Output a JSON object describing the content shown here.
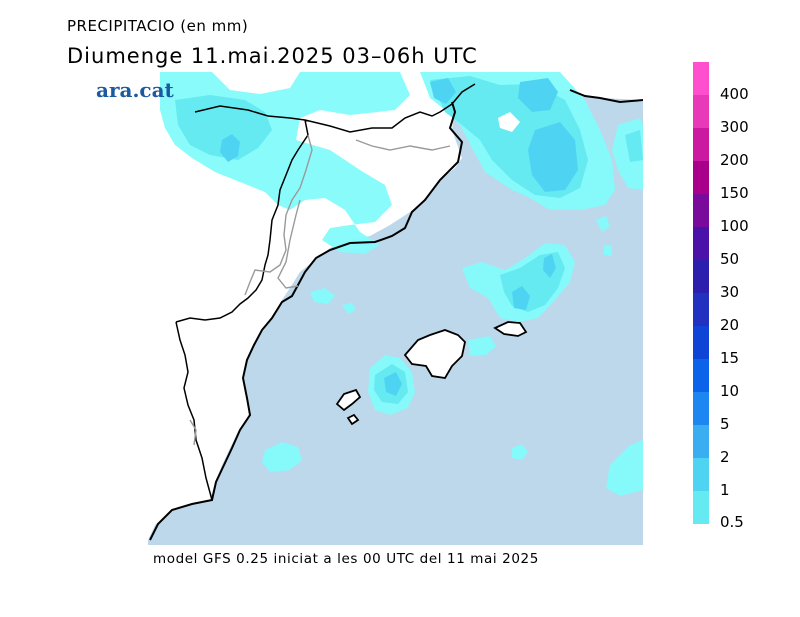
{
  "title": {
    "line1": "PRECIPITACIO (en mm)",
    "line2": "Diumenge  11.mai.2025 03–06h UTC"
  },
  "logo": "ara.cat",
  "footer": "model GFS 0.25 iniciat a les 00 UTC del 11 mai 2025",
  "legend": {
    "colors": [
      "#84fbfb",
      "#64eaf0",
      "#4fd3f3",
      "#3aaef0",
      "#1d86f0",
      "#0a63e8",
      "#0f45d6",
      "#2231c0",
      "#2d1fae",
      "#4a12a8",
      "#7a0a9c",
      "#a8008a",
      "#cc1aa0",
      "#e83ab8",
      "#ff4fcf"
    ],
    "labels": [
      "0.5",
      "1",
      "2",
      "5",
      "10",
      "15",
      "20",
      "30",
      "50",
      "100",
      "150",
      "200",
      "300",
      "400"
    ]
  },
  "map_colors": {
    "sea": "#bcd8ea",
    "land": "#ffffff",
    "precip_light": "#84fbfb",
    "precip_medium": "#64eaf0",
    "precip_heavy": "#4fd3f3"
  }
}
